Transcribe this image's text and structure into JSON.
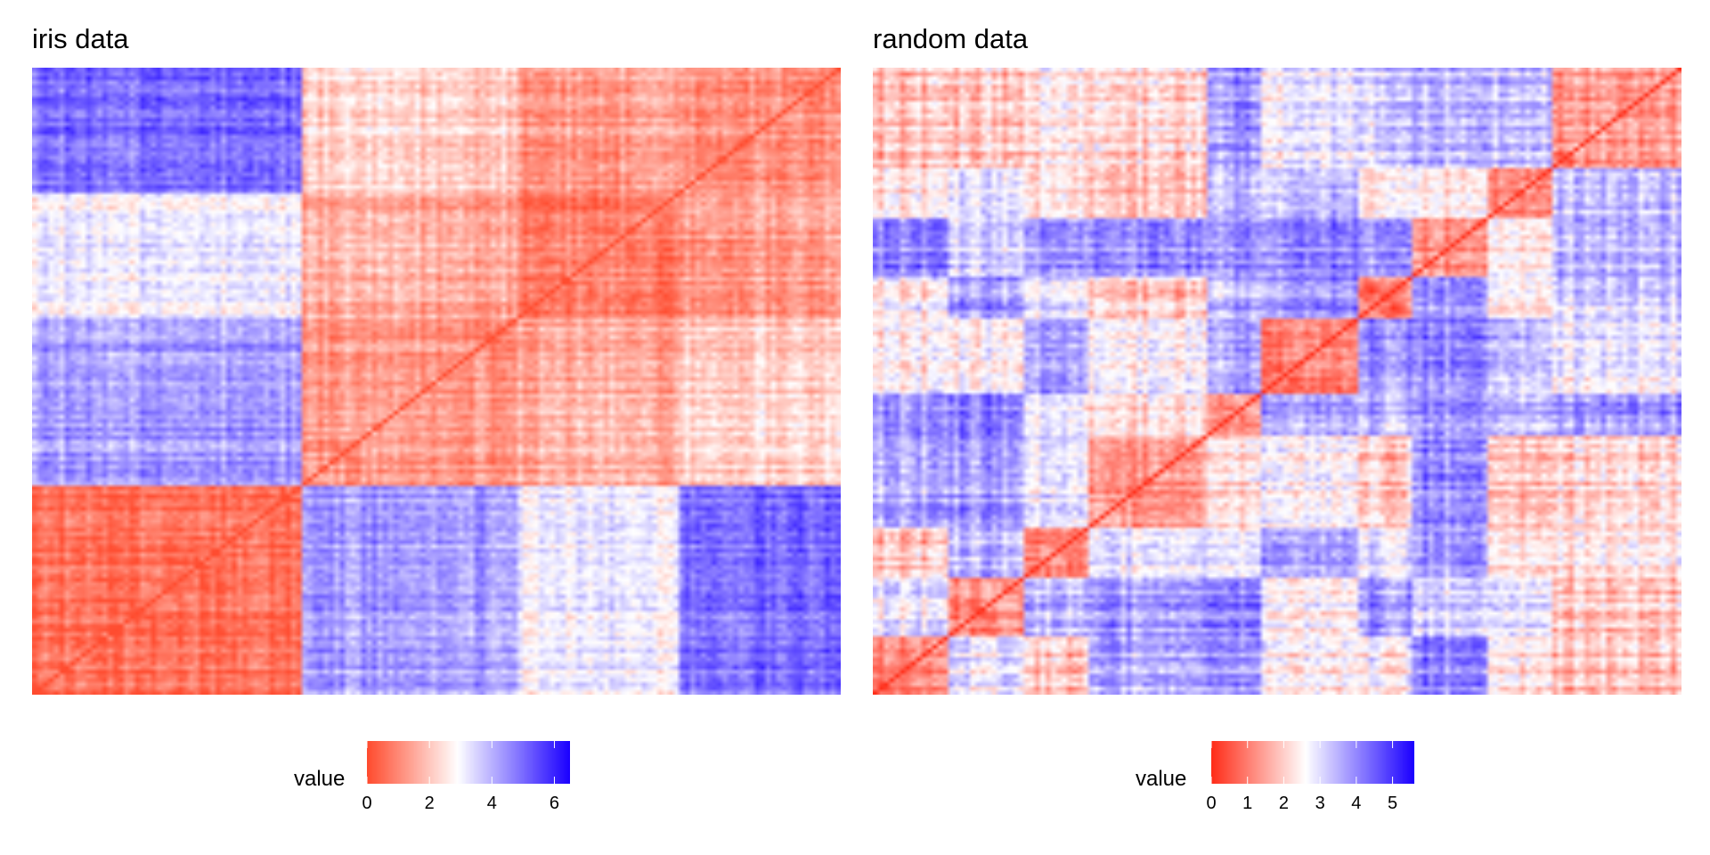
{
  "chart_data": [
    {
      "type": "heatmap",
      "title": "iris data",
      "legend": {
        "title": "value",
        "placement": "bottom",
        "ticks": [
          0,
          2,
          4,
          6
        ],
        "range": [
          0,
          6.5
        ]
      },
      "color_scale": {
        "low": "#ff4b2e",
        "mid": "#ffffff",
        "high": "#1b00ff",
        "midpoint": 2.9
      },
      "structure": {
        "n": 150,
        "cluster_sizes": [
          50,
          40,
          30,
          30
        ],
        "order_description": "clusters ordered to mimic the pattern",
        "diagonal": 0
      },
      "blocks": {
        "within": [
          0.6,
          1.4,
          0.9,
          1.2
        ],
        "between": [
          [
            0.6,
            4.3,
            3.1,
            5.0
          ],
          [
            4.3,
            1.4,
            1.6,
            2.2
          ],
          [
            3.1,
            1.6,
            0.9,
            1.3
          ],
          [
            5.0,
            2.2,
            1.3,
            1.2
          ]
        ]
      },
      "grid": false
    },
    {
      "type": "heatmap",
      "title": "random data",
      "legend": {
        "title": "value",
        "placement": "bottom",
        "ticks": [
          0,
          1,
          2,
          3,
          4,
          5
        ],
        "range": [
          0,
          5.6
        ]
      },
      "color_scale": {
        "low": "#ff2d18",
        "mid": "#ffffff",
        "high": "#1b00ff",
        "midpoint": 2.6
      },
      "structure": {
        "n": 150,
        "cluster_sizes": [
          14,
          14,
          12,
          22,
          10,
          18,
          10,
          14,
          12,
          24
        ],
        "diagonal": 0
      },
      "blocks": {
        "within": [
          1.2,
          1.3,
          1.1,
          1.4,
          1.2,
          1.3,
          1.2,
          1.2,
          1.3,
          1.4
        ],
        "between_mean": 2.9,
        "between_spread": 1.2
      },
      "grid": false
    }
  ]
}
